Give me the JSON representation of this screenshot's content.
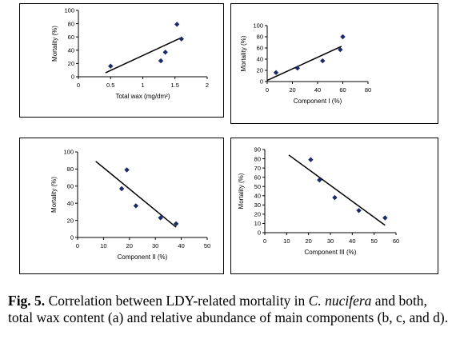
{
  "chart_data": [
    {
      "type": "scatter",
      "title": "",
      "xlabel": "Total wax (mg/dm²)",
      "ylabel": "Mortality (%)",
      "xlim": [
        0,
        2
      ],
      "ylim": [
        0,
        100
      ],
      "xticks": [
        0,
        0.5,
        1,
        1.5,
        2
      ],
      "xticklabels": [
        "0",
        "0.5",
        "1",
        "1.5",
        "2"
      ],
      "yticks": [
        0,
        20,
        40,
        60,
        80,
        100
      ],
      "yticklabels": [
        "0",
        "20",
        "40",
        "60",
        "80",
        "100"
      ],
      "points": [
        {
          "x": 0.5,
          "y": 16
        },
        {
          "x": 1.28,
          "y": 24
        },
        {
          "x": 1.35,
          "y": 37
        },
        {
          "x": 1.53,
          "y": 79
        },
        {
          "x": 1.6,
          "y": 57
        }
      ],
      "trendline": {
        "x": [
          0.42,
          1.6
        ],
        "y": [
          6,
          59
        ]
      },
      "grid": false,
      "marker_color": "#1b2a6b"
    },
    {
      "type": "scatter",
      "title": "",
      "xlabel": "Component I (%)",
      "ylabel": "Mortality (%)",
      "xlim": [
        0,
        80
      ],
      "ylim": [
        0,
        100
      ],
      "xticks": [
        0,
        20,
        40,
        60,
        80
      ],
      "xticklabels": [
        "0",
        "20",
        "40",
        "60",
        "80"
      ],
      "yticks": [
        0,
        20,
        40,
        60,
        80,
        100
      ],
      "yticklabels": [
        "0",
        "20",
        "40",
        "60",
        "80",
        "100"
      ],
      "points": [
        {
          "x": 7,
          "y": 16
        },
        {
          "x": 24,
          "y": 24
        },
        {
          "x": 44,
          "y": 37
        },
        {
          "x": 58,
          "y": 57
        },
        {
          "x": 60,
          "y": 80
        }
      ],
      "trendline": {
        "x": [
          0,
          59
        ],
        "y": [
          2,
          63
        ]
      },
      "grid": false,
      "marker_color": "#1b2a6b"
    },
    {
      "type": "scatter",
      "title": "",
      "xlabel": "Component II (%)",
      "ylabel": "Mortality (%)",
      "xlim": [
        0,
        50
      ],
      "ylim": [
        0,
        100
      ],
      "xticks": [
        0,
        10,
        20,
        30,
        40,
        50
      ],
      "xticklabels": [
        "0",
        "10",
        "20",
        "30",
        "40",
        "50"
      ],
      "yticks": [
        0,
        20,
        40,
        60,
        80,
        100
      ],
      "yticklabels": [
        "0",
        "20",
        "40",
        "60",
        "80",
        "100"
      ],
      "points": [
        {
          "x": 17,
          "y": 57
        },
        {
          "x": 19,
          "y": 79
        },
        {
          "x": 22.5,
          "y": 37
        },
        {
          "x": 32,
          "y": 23
        },
        {
          "x": 38,
          "y": 16
        }
      ],
      "trendline": {
        "x": [
          7,
          38
        ],
        "y": [
          89,
          12
        ]
      },
      "grid": false,
      "marker_color": "#1b2a6b"
    },
    {
      "type": "scatter",
      "title": "",
      "xlabel": "Component III (%)",
      "ylabel": "Mortality (%)",
      "xlim": [
        0,
        60
      ],
      "ylim": [
        0,
        90
      ],
      "xticks": [
        0,
        10,
        20,
        30,
        40,
        50,
        60
      ],
      "xticklabels": [
        "0",
        "10",
        "20",
        "30",
        "40",
        "50",
        "60"
      ],
      "yticks": [
        0,
        10,
        20,
        30,
        40,
        50,
        60,
        70,
        80,
        90
      ],
      "yticklabels": [
        "0",
        "10",
        "20",
        "30",
        "40",
        "50",
        "60",
        "70",
        "80",
        "90"
      ],
      "points": [
        {
          "x": 21,
          "y": 79
        },
        {
          "x": 25,
          "y": 57
        },
        {
          "x": 32,
          "y": 38
        },
        {
          "x": 43,
          "y": 24
        },
        {
          "x": 55,
          "y": 16
        }
      ],
      "trendline": {
        "x": [
          11,
          55
        ],
        "y": [
          84,
          8
        ]
      },
      "grid": false,
      "marker_color": "#1b2a6b"
    }
  ],
  "caption": {
    "label": "Fig. 5.",
    "text_before_species": " Correlation between LDY-related mortality in ",
    "species": "C. nucifera",
    "text_after_species": " and both, total wax content (a) and relative abundance of main components (b, c, and d)."
  }
}
